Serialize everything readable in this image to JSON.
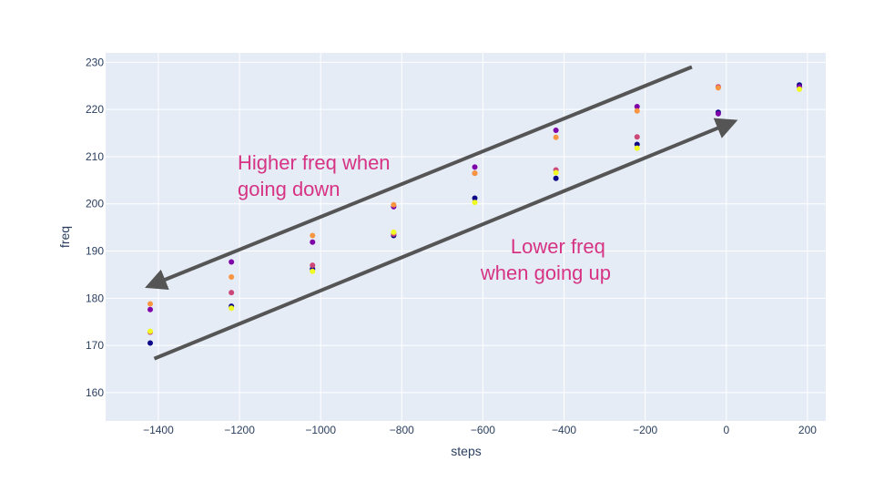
{
  "chart_data": {
    "type": "scatter",
    "title": "",
    "xlabel": "steps",
    "ylabel": "freq",
    "xlim": [
      -1530,
      245
    ],
    "ylim": [
      154,
      232
    ],
    "xticks": [
      -1400,
      -1200,
      -1000,
      -800,
      -600,
      -400,
      -200,
      0,
      200
    ],
    "xtick_labels": [
      "−1400",
      "−1200",
      "−1000",
      "−800",
      "−600",
      "−400",
      "−200",
      "0",
      "200"
    ],
    "yticks": [
      160,
      170,
      180,
      190,
      200,
      210,
      220,
      230
    ],
    "ytick_labels": [
      "160",
      "170",
      "180",
      "190",
      "200",
      "210",
      "220",
      "230"
    ],
    "grid": true,
    "background": "#e5ecf6",
    "series": [
      {
        "name": "s1",
        "color": "#0d0887",
        "x": [
          -1420,
          -1220,
          -1020,
          -820,
          -620,
          -420,
          -220,
          -20,
          180
        ],
        "y": [
          170.5,
          178.3,
          186.2,
          193.3,
          201.2,
          205.4,
          212.6,
          219.4,
          225.2
        ]
      },
      {
        "name": "s2",
        "color": "#7e03a8",
        "x": [
          -1420,
          -1220,
          -1020,
          -820,
          -620,
          -420,
          -220,
          -20,
          180
        ],
        "y": [
          177.6,
          187.7,
          191.9,
          199.4,
          207.8,
          215.6,
          220.6,
          219.1,
          224.8
        ]
      },
      {
        "name": "s3",
        "color": "#cc4778",
        "x": [
          -1420,
          -1220,
          -1020,
          -820,
          -620,
          -420,
          -220,
          -20
        ],
        "y": [
          172.8,
          181.2,
          187.0,
          193.6,
          206.5,
          207.2,
          214.2,
          224.8
        ]
      },
      {
        "name": "s4",
        "color": "#f89540",
        "x": [
          -1420,
          -1220,
          -1020,
          -820,
          -620,
          -420,
          -220,
          -20
        ],
        "y": [
          178.8,
          184.5,
          193.3,
          199.8,
          206.5,
          214.1,
          219.7,
          224.6
        ]
      },
      {
        "name": "s5",
        "color": "#f0f921",
        "x": [
          -1420,
          -1220,
          -1020,
          -820,
          -620,
          -420,
          -220,
          180
        ],
        "y": [
          173.0,
          177.9,
          185.7,
          194.0,
          200.3,
          206.6,
          211.8,
          224.3
        ]
      }
    ],
    "annotations": [
      {
        "lines": [
          "Higher freq when",
          "going down"
        ],
        "color": "#d63384"
      },
      {
        "lines": [
          "Lower freq",
          "when going up"
        ],
        "color": "#d63384"
      }
    ],
    "arrows": [
      {
        "name": "higher-freq-arrow",
        "from": [
          -85,
          229.0
        ],
        "to": [
          -1425,
          182.5
        ],
        "color": "#555555"
      },
      {
        "name": "lower-freq-arrow",
        "from": [
          -1410,
          167.2
        ],
        "to": [
          20,
          217.5
        ],
        "color": "#555555"
      }
    ]
  }
}
